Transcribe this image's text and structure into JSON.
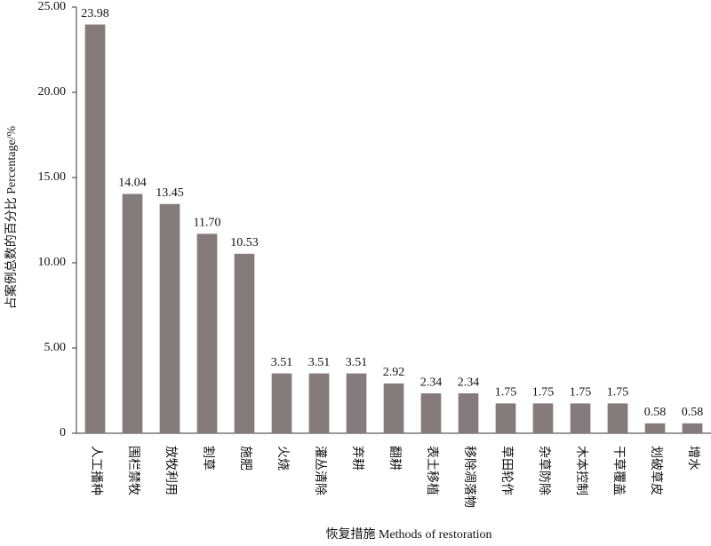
{
  "chart_data": {
    "type": "bar",
    "y_label": "占案例总数的百分比 Percentage/%",
    "x_label": "恢复措施 Methods of restoration",
    "categories": [
      "人工播种",
      "围栏禁牧",
      "放牧利用",
      "割草",
      "施肥",
      "火烧",
      "灌丛清除",
      "弃耕",
      "翻耕",
      "表土移植",
      "移除凋落物",
      "草田轮作",
      "杂草防除",
      "木本控制",
      "干草覆盖",
      "划破草皮",
      "增水"
    ],
    "values": [
      23.98,
      14.04,
      13.45,
      11.7,
      10.53,
      3.51,
      3.51,
      3.51,
      2.92,
      2.34,
      2.34,
      1.75,
      1.75,
      1.75,
      1.75,
      0.58,
      0.58
    ],
    "value_labels": [
      "23.98",
      "14.04",
      "13.45",
      "11.70",
      "10.53",
      "3.51",
      "3.51",
      "3.51",
      "2.92",
      "2.34",
      "2.34",
      "1.75",
      "1.75",
      "1.75",
      "1.75",
      "0.58",
      "0.58"
    ],
    "color": "#857b7c",
    "ylim": [
      0,
      25
    ],
    "yticks": [
      0,
      {
        "value": 5,
        "label": "5.00"
      },
      {
        "value": 10,
        "label": "10.00"
      },
      {
        "value": 15,
        "label": "15.00"
      },
      {
        "value": 20,
        "label": "20.00"
      },
      {
        "value": 25,
        "label": "25.00"
      }
    ],
    "grid": false
  }
}
